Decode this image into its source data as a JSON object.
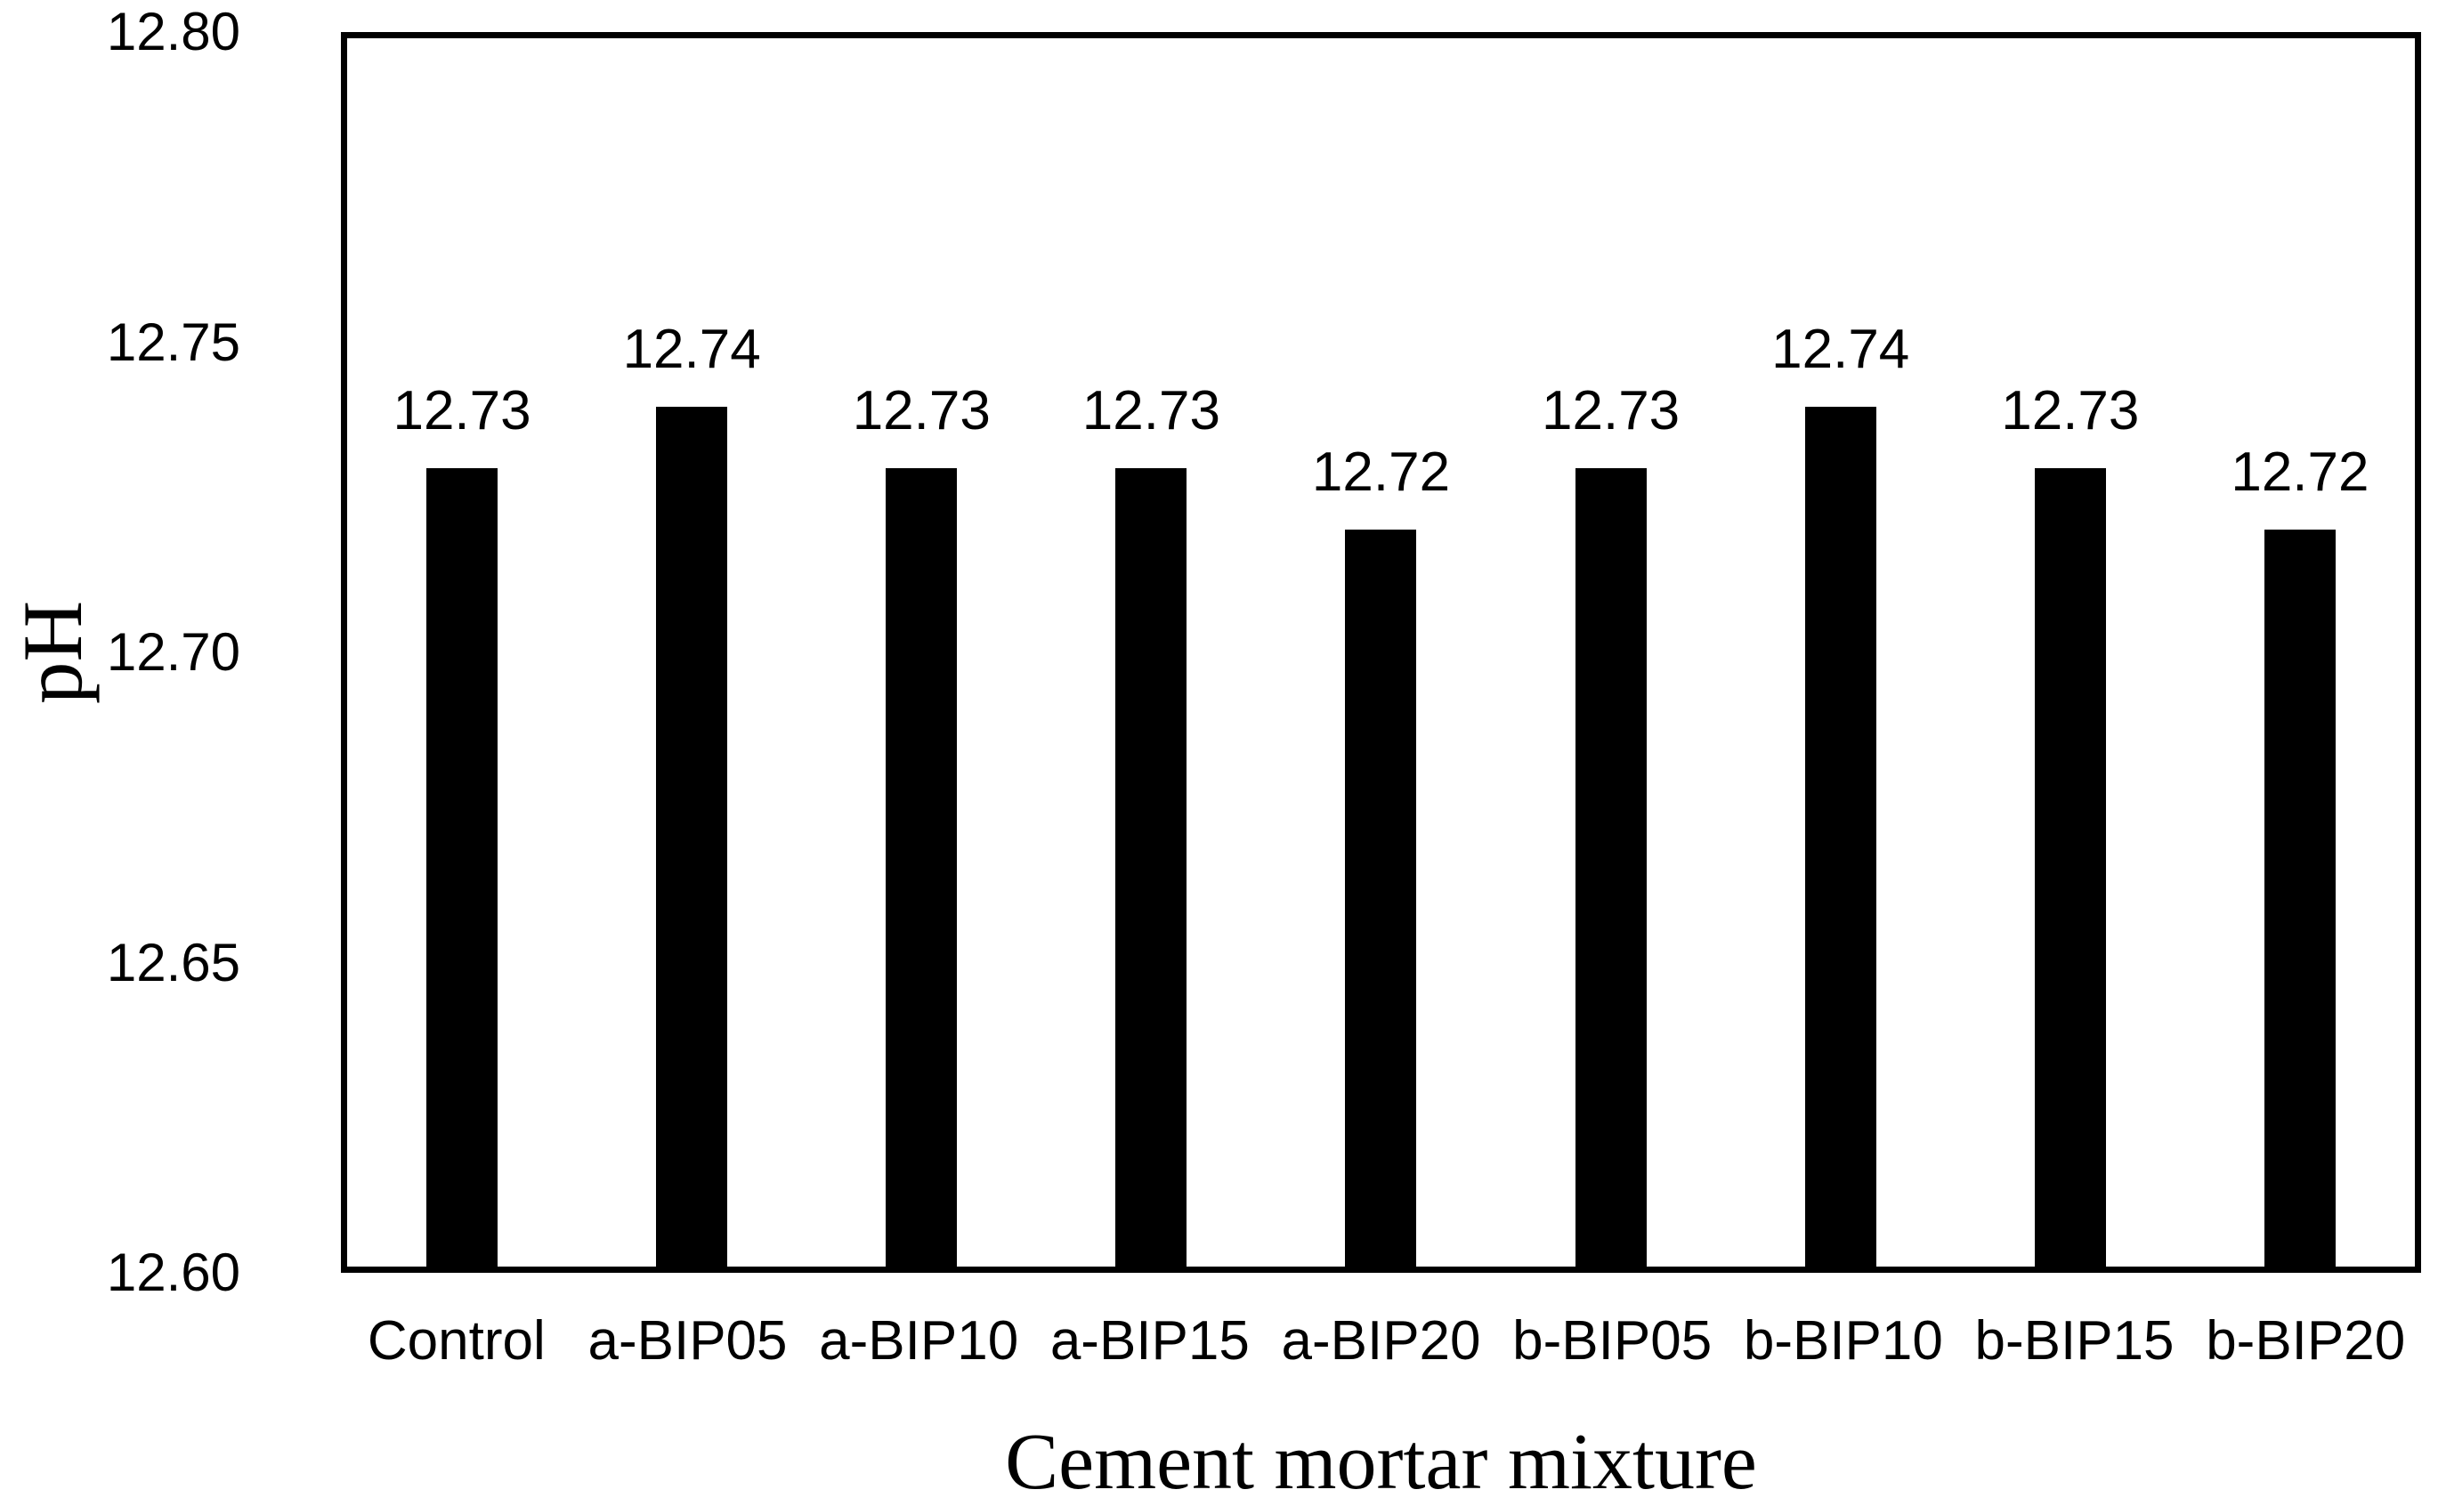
{
  "background_color": "#ffffff",
  "chart_data": {
    "type": "bar",
    "title": "",
    "xlabel": "Cement mortar mixture",
    "ylabel": "pH",
    "categories": [
      "Control",
      "a-BIP05",
      "a-BIP10",
      "a-BIP15",
      "a-BIP20",
      "b-BIP05",
      "b-BIP10",
      "b-BIP15",
      "b-BIP20"
    ],
    "values": [
      12.73,
      12.74,
      12.73,
      12.73,
      12.72,
      12.73,
      12.74,
      12.73,
      12.72
    ],
    "value_labels": [
      "12.73",
      "12.74",
      "12.73",
      "12.73",
      "12.72",
      "12.73",
      "12.74",
      "12.73",
      "12.72"
    ],
    "ylim": [
      12.6,
      12.8
    ],
    "ytick_step": 0.05,
    "yticks": [
      "12.80",
      "12.75",
      "12.70",
      "12.65",
      "12.60"
    ],
    "bar_color": "#000000",
    "axis_color": "#000000",
    "grid": "off",
    "legend": "none"
  }
}
